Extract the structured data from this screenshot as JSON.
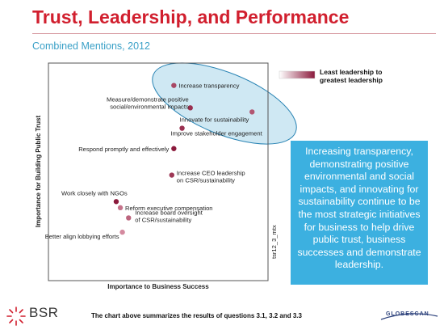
{
  "slide": {
    "title": "Trust, Leadership, and Performance",
    "subtitle": "Combined Mentions, 2012",
    "callout": "Increasing transparency, demonstrating positive environmental and social impacts, and innovating for sustainability continue to be the most strategic initiatives for business to help drive public trust, business successes and demonstrate leadership.",
    "footer": "The chart above summarizes the results of questions 3.1, 3.2 and 3.3",
    "logo_left": "BSR",
    "logo_right": "GLOBESCAN",
    "colors": {
      "title": "#d11f2e",
      "subtitle": "#3aa0c7",
      "callout_bg": "#3cb0e0",
      "highlight_ellipse": "#cfe8f3",
      "dot_dark": "#8b1a3c",
      "dot_light": "#e8a8b8"
    }
  },
  "chart_data": {
    "type": "scatter",
    "xlabel": "Importance to Business Success",
    "ylabel": "Importance for Building Public Trust",
    "xlim": [
      0,
      100
    ],
    "ylim": [
      0,
      100
    ],
    "grid": false,
    "legend": {
      "label_line1": "Least leadership to",
      "label_line2": "greatest leadership",
      "placement": "top-right"
    },
    "watermark": "tsr12_3_mtx",
    "points": [
      {
        "label": "Increase transparency",
        "x": 57,
        "y": 93,
        "leadership": 0.7
      },
      {
        "label_line1": "Measure/demonstrate positive",
        "label_line2": "social/environmental impacts",
        "x": 65,
        "y": 82,
        "leadership": 0.85
      },
      {
        "label": "Innovate for sustainability",
        "x": 95,
        "y": 80,
        "leadership": 0.6
      },
      {
        "label": "Improve stakeholder engagement",
        "x": 61,
        "y": 72,
        "leadership": 0.85
      },
      {
        "label": "Respond promptly and effectively",
        "x": 57,
        "y": 62,
        "leadership": 1.0
      },
      {
        "label_line1": "Increase CEO leadership",
        "label_line2": "on CSR/sustainability",
        "x": 56,
        "y": 49,
        "leadership": 0.8
      },
      {
        "label": "Work closely with NGOs",
        "x": 29,
        "y": 36,
        "leadership": 1.0
      },
      {
        "label": "Reform executive compensation",
        "x": 31,
        "y": 33,
        "leadership": 0.4
      },
      {
        "label_line1": "Increase board oversight",
        "label_line2": "of CSR/sustainability",
        "x": 35,
        "y": 28,
        "leadership": 0.5
      },
      {
        "label": "Better align lobbying efforts",
        "x": 32,
        "y": 21,
        "leadership": 0.25
      }
    ]
  }
}
